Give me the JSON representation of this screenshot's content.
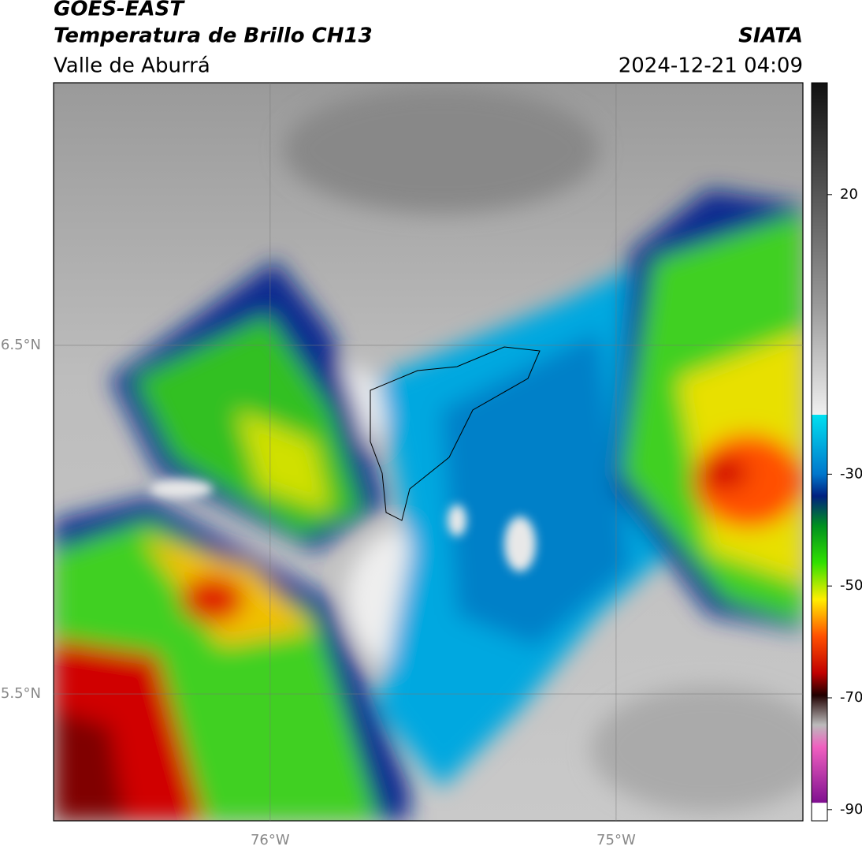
{
  "header": {
    "title": "GOES-EAST",
    "subtitle": "Temperatura de Brillo CH13",
    "region": "Valle de Aburrá",
    "source": "SIATA",
    "timestamp": "2024-12-21 04:09"
  },
  "map": {
    "xlim": [
      -76.626,
      -74.46
    ],
    "ylim": [
      5.136,
      7.253
    ],
    "xticks": [
      {
        "value": -76,
        "label": "76°W"
      },
      {
        "value": -75,
        "label": "75°W"
      }
    ],
    "yticks": [
      {
        "value": 6.5,
        "label": "6.5°N"
      },
      {
        "value": 5.5,
        "label": "5.5°N"
      }
    ]
  },
  "colorbar": {
    "lim": [
      -92,
      40
    ],
    "ticks": [
      20,
      -30,
      -50,
      -70,
      -90
    ]
  }
}
